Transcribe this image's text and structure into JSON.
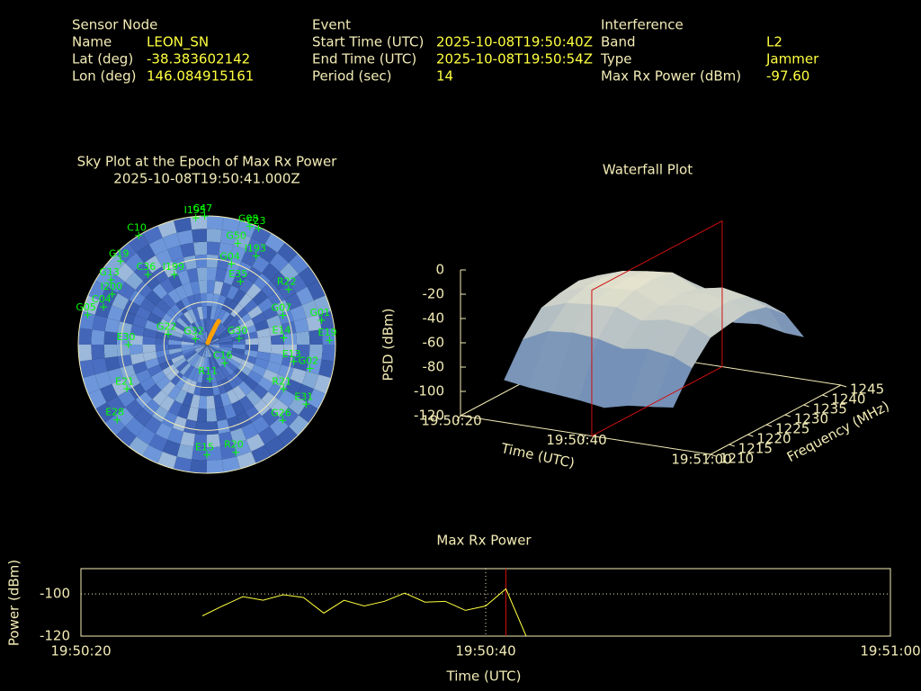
{
  "info": {
    "sensor": {
      "heading": "Sensor Node",
      "rows": [
        [
          "Name",
          "LEON_SN"
        ],
        [
          "Lat (deg)",
          "-38.383602142"
        ],
        [
          "Lon (deg)",
          "146.084915161"
        ]
      ]
    },
    "event": {
      "heading": "Event",
      "rows": [
        [
          "Start Time (UTC)",
          "2025-10-08T19:50:40Z"
        ],
        [
          "End Time (UTC)",
          "2025-10-08T19:50:54Z"
        ],
        [
          "Period (sec)",
          "14"
        ]
      ]
    },
    "interference": {
      "heading": "Interference",
      "rows": [
        [
          "Band",
          "L2"
        ],
        [
          "Type",
          "Jammer"
        ],
        [
          "Max Rx Power (dBm)",
          "-97.60"
        ]
      ]
    }
  },
  "chart_data": [
    {
      "type": "polar",
      "title": "Sky Plot at the Epoch of Max Rx Power",
      "subtitle": "2025-10-08T19:50:41.000Z",
      "ellim": [
        90,
        0
      ],
      "elticks": [
        0,
        30,
        60
      ],
      "azticks": [
        0,
        30,
        60,
        90,
        120,
        150,
        180,
        210,
        240,
        270,
        300,
        330
      ],
      "color": "#00ff00",
      "satellites": [
        {
          "name": "G08",
          "az": 20,
          "el": 2
        },
        {
          "name": "E23",
          "az": 24,
          "el": 1
        },
        {
          "name": "C47",
          "az": 359,
          "el": 0
        },
        {
          "name": "I195",
          "az": 355,
          "el": 1
        },
        {
          "name": "C10",
          "az": 328,
          "el": 0
        },
        {
          "name": "G50",
          "az": 17,
          "el": 16
        },
        {
          "name": "I193",
          "az": 29,
          "el": 19
        },
        {
          "name": "G04",
          "az": 17,
          "el": 31
        },
        {
          "name": "E35",
          "az": 28,
          "el": 40
        },
        {
          "name": "R22",
          "az": 56,
          "el": 21
        },
        {
          "name": "G07",
          "az": 69,
          "el": 33
        },
        {
          "name": "G01",
          "az": 78,
          "el": 8
        },
        {
          "name": "E19",
          "az": 88,
          "el": 4
        },
        {
          "name": "E14",
          "az": 85,
          "el": 36
        },
        {
          "name": "G30",
          "az": 79,
          "el": 67
        },
        {
          "name": "G02",
          "az": 103,
          "el": 16
        },
        {
          "name": "E13",
          "az": 101,
          "el": 28
        },
        {
          "name": "R21",
          "az": 120,
          "el": 28
        },
        {
          "name": "E31",
          "az": 121,
          "el": 9
        },
        {
          "name": "G26",
          "az": 135,
          "el": 15
        },
        {
          "name": "C16",
          "az": 136,
          "el": 72
        },
        {
          "name": "R11",
          "az": 175,
          "el": 66
        },
        {
          "name": "E15",
          "az": 180,
          "el": 13
        },
        {
          "name": "R20",
          "az": 165,
          "el": 12
        },
        {
          "name": "E28",
          "az": 230,
          "el": 8
        },
        {
          "name": "E21",
          "az": 241,
          "el": 26
        },
        {
          "name": "G22",
          "az": 285,
          "el": 62
        },
        {
          "name": "G32",
          "az": 297,
          "el": 81
        },
        {
          "name": "E30",
          "az": 270,
          "el": 35
        },
        {
          "name": "G05",
          "az": 284,
          "el": 4
        },
        {
          "name": "C04",
          "az": 290,
          "el": 13
        },
        {
          "name": "I200",
          "az": 298,
          "el": 15
        },
        {
          "name": "G13",
          "az": 304,
          "el": 9
        },
        {
          "name": "G19",
          "az": 314,
          "el": 6
        },
        {
          "name": "C36",
          "az": 320,
          "el": 26
        },
        {
          "name": "I199",
          "az": 335,
          "el": 36
        }
      ]
    },
    {
      "type": "surface",
      "title": "Waterfall Plot",
      "xlabel": "Time (UTC)",
      "ylabel": "Frequency (MHz)",
      "zlabel": "PSD (dBm)",
      "xlim": [
        "19:50:20",
        "19:51:00"
      ],
      "xticks": [
        "19:50:20",
        "19:50:40",
        "19:51:00"
      ],
      "ylim": [
        1210,
        1245
      ],
      "yticks": [
        1210,
        1215,
        1220,
        1225,
        1230,
        1235,
        1240,
        1245
      ],
      "zlim": [
        -120,
        0
      ],
      "zticks": [
        0,
        -20,
        -40,
        -60,
        -80,
        -100,
        -120
      ],
      "x": [
        "19:50:27",
        "19:50:31",
        "19:50:35",
        "19:50:39",
        "19:50:43",
        "19:50:47",
        "19:50:51",
        "19:50:54"
      ],
      "y": [
        1210,
        1215,
        1220,
        1225,
        1230,
        1235,
        1240,
        1245
      ],
      "z": [
        [
          -85,
          -60,
          -42,
          -38,
          -36,
          -40,
          -55,
          -82
        ],
        [
          -88,
          -50,
          -35,
          -30,
          -30,
          -33,
          -48,
          -80
        ],
        [
          -90,
          -48,
          -33,
          -28,
          -27,
          -30,
          -45,
          -78
        ],
        [
          -92,
          -50,
          -32,
          -26,
          -25,
          -28,
          -44,
          -80
        ],
        [
          -95,
          -55,
          -40,
          -36,
          -35,
          -38,
          -50,
          -82
        ],
        [
          -90,
          -52,
          -36,
          -32,
          -30,
          -34,
          -48,
          -80
        ],
        [
          -88,
          -55,
          -38,
          -35,
          -34,
          -38,
          -52,
          -84
        ],
        [
          -86,
          -62,
          -45,
          -42,
          -40,
          -44,
          -58,
          -85
        ]
      ],
      "colors": [
        "#2d5ca8",
        "#fbf3d2"
      ],
      "marker_x": "19:50:41",
      "marker_color": "#d01010"
    },
    {
      "type": "line",
      "title": "Max Rx Power",
      "xlabel": "Time (UTC)",
      "ylabel": "Power (dBm)",
      "xlim": [
        "19:50:20",
        "19:51:00"
      ],
      "xticks": [
        "19:50:20",
        "19:50:40",
        "19:51:00"
      ],
      "ylim": [
        -120,
        -88
      ],
      "yticks": [
        -100,
        -120
      ],
      "grid": true,
      "color": "#ffff40",
      "x": [
        "19:50:26",
        "19:50:27",
        "19:50:28",
        "19:50:29",
        "19:50:30",
        "19:50:31",
        "19:50:32",
        "19:50:33",
        "19:50:34",
        "19:50:35",
        "19:50:36",
        "19:50:37",
        "19:50:38",
        "19:50:39",
        "19:50:40",
        "19:50:41",
        "19:50:42"
      ],
      "values": [
        -110.4,
        -105.7,
        -101.3,
        -103,
        -100.4,
        -101.7,
        -109.1,
        -103,
        -105.7,
        -103.5,
        -99.6,
        -103.9,
        -103.5,
        -107.8,
        -105.7,
        -97.6,
        -120
      ],
      "marker_x": "19:50:41",
      "marker_color": "#d01010"
    }
  ]
}
